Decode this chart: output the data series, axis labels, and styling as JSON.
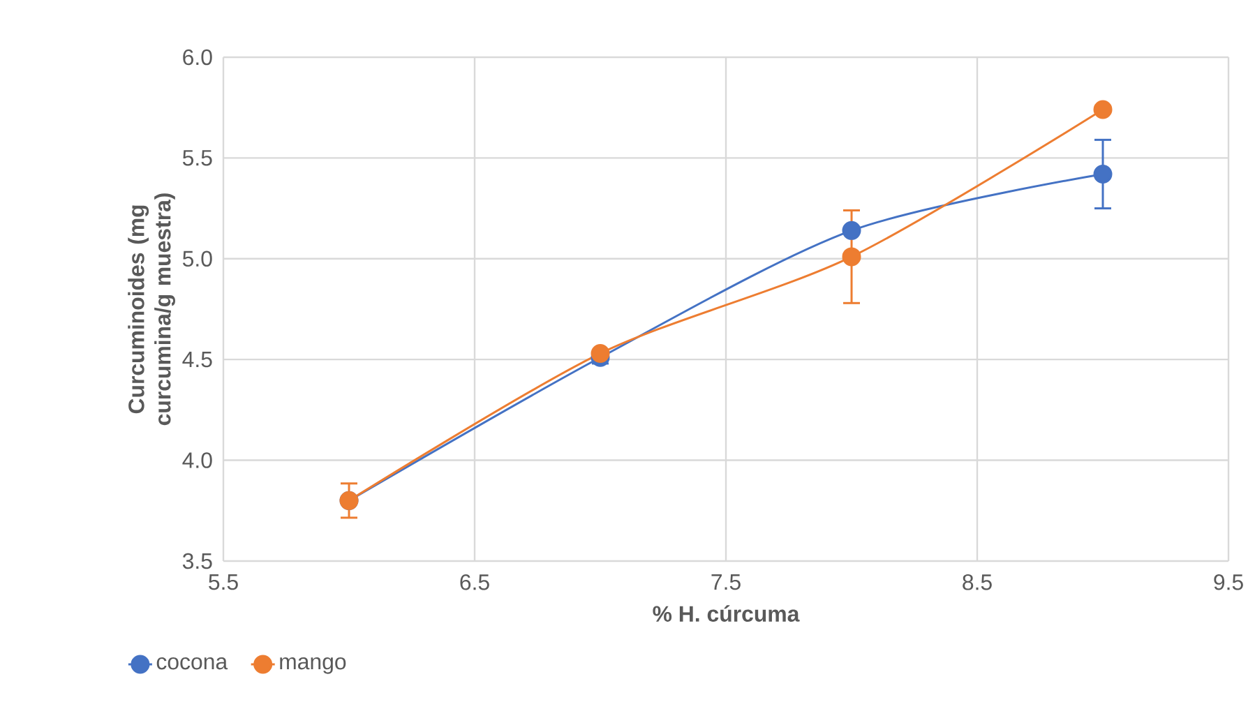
{
  "chart_data": {
    "type": "line",
    "xlabel": "% H. cúrcuma",
    "ylabel": "Curcuminoides (mg curcumina/g muestra)",
    "x": [
      6,
      7,
      8,
      9
    ],
    "series": [
      {
        "name": "cocona",
        "color": "#4472c4",
        "values": [
          3.8,
          4.51,
          5.14,
          5.42
        ],
        "errors": [
          null,
          0.03,
          null,
          0.17
        ]
      },
      {
        "name": "mango",
        "color": "#ed7d31",
        "values": [
          3.8,
          4.53,
          5.01,
          5.74
        ],
        "errors": [
          0.085,
          null,
          0.23,
          null
        ]
      }
    ],
    "xlim": [
      5.5,
      9.5
    ],
    "xticks": [
      5.5,
      6.5,
      7.5,
      8.5,
      9.5
    ],
    "ylim": [
      3.5,
      6.0
    ],
    "yticks": [
      {
        "value": 3.5,
        "label": "3.5"
      },
      {
        "value": 4.0,
        "label": "4.0"
      },
      {
        "value": 4.5,
        "label": "4.5"
      },
      {
        "value": 5.0,
        "label": "5.0"
      },
      {
        "value": 5.5,
        "label": "5.5"
      },
      {
        "value": 6.0,
        "label": "6.0"
      }
    ],
    "grid": true,
    "legend": "bottom left",
    "marker": "circle"
  }
}
